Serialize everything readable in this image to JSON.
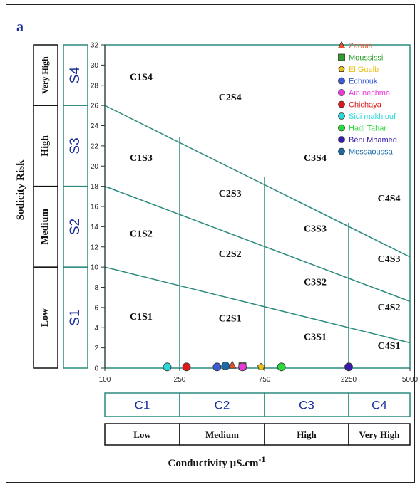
{
  "panel_label": "a",
  "chart_data": {
    "type": "scatter",
    "title": "",
    "xlabel": "Conductivity µS.cm",
    "xlabel_sup": "-1",
    "ylabel": "Sodicity Risk",
    "x_ticks": [
      100,
      250,
      750,
      2250,
      5000
    ],
    "y_ticks": [
      0,
      2,
      4,
      6,
      8,
      10,
      12,
      14,
      16,
      18,
      20,
      22,
      24,
      26,
      28,
      30,
      32
    ],
    "ylim": [
      0,
      32
    ],
    "grid": false,
    "legend_position": "top-right",
    "salinity_classes": [
      "C1",
      "C2",
      "C3",
      "C4"
    ],
    "salinity_levels": [
      "Low",
      "Medium",
      "High",
      "Very High"
    ],
    "sodicity_classes": [
      "S1",
      "S2",
      "S3",
      "S4"
    ],
    "sodicity_levels": [
      "Low",
      "Medium",
      "High",
      "Very High"
    ],
    "boundary_lines": [
      {
        "name": "S1/S2",
        "points": [
          [
            100,
            10
          ],
          [
            5000,
            2.5
          ]
        ]
      },
      {
        "name": "S2/S3",
        "points": [
          [
            100,
            18
          ],
          [
            5000,
            6.6
          ]
        ]
      },
      {
        "name": "S3/S4",
        "points": [
          [
            100,
            26
          ],
          [
            5000,
            11
          ]
        ]
      }
    ],
    "zones": [
      {
        "label": "C1S4",
        "x": 150,
        "y": 28.5
      },
      {
        "label": "C2S4",
        "x": 480,
        "y": 26.5
      },
      {
        "label": "C1S3",
        "x": 150,
        "y": 20.5
      },
      {
        "label": "C3S4",
        "x": 1450,
        "y": 20.5
      },
      {
        "label": "C2S3",
        "x": 480,
        "y": 17
      },
      {
        "label": "C4S4",
        "x": 3550,
        "y": 16.5
      },
      {
        "label": "C1S2",
        "x": 150,
        "y": 13
      },
      {
        "label": "C3S3",
        "x": 1450,
        "y": 13.5
      },
      {
        "label": "C2S2",
        "x": 480,
        "y": 11
      },
      {
        "label": "C4S3",
        "x": 3550,
        "y": 10.5
      },
      {
        "label": "C3S2",
        "x": 1450,
        "y": 8.2
      },
      {
        "label": "C4S2",
        "x": 3550,
        "y": 5.7
      },
      {
        "label": "C1S1",
        "x": 150,
        "y": 4.8
      },
      {
        "label": "C2S1",
        "x": 480,
        "y": 4.6
      },
      {
        "label": "C3S1",
        "x": 1450,
        "y": 2.8
      },
      {
        "label": "C4S1",
        "x": 3550,
        "y": 1.9
      }
    ],
    "series": [
      {
        "name": "Zaouia",
        "marker": "triangle",
        "color": "#e8532a",
        "x": 560,
        "y": 0.2
      },
      {
        "name": "Moussissi",
        "marker": "square",
        "color": "#2aa02a",
        "x": 620,
        "y": 0.1
      },
      {
        "name": "El Guelb",
        "marker": "pentagon",
        "color": "#e8c21a",
        "x": 730,
        "y": 0.05
      },
      {
        "name": "Echrouk",
        "marker": "circle",
        "color": "#3a5ad8",
        "x": 470,
        "y": 0.05
      },
      {
        "name": "Ain nechma",
        "marker": "circle",
        "color": "#e83ad8",
        "x": 620,
        "y": 0.05
      },
      {
        "name": "Chichaya",
        "marker": "circle",
        "color": "#e01a1a",
        "x": 290,
        "y": 0.05
      },
      {
        "name": "Sidi makhlouf",
        "marker": "circle",
        "color": "#2ad8d8",
        "x": 225,
        "y": 0.05
      },
      {
        "name": "Hadj Tahar",
        "marker": "circle",
        "color": "#2ad83a",
        "x": 1050,
        "y": 0.05
      },
      {
        "name": "Béni Mhamed",
        "marker": "circle",
        "color": "#3a1aaa",
        "x": 2250,
        "y": 0.05
      },
      {
        "name": "Messaoussa",
        "marker": "circle",
        "color": "#1a6aa8",
        "x": 520,
        "y": 0.15
      }
    ]
  }
}
